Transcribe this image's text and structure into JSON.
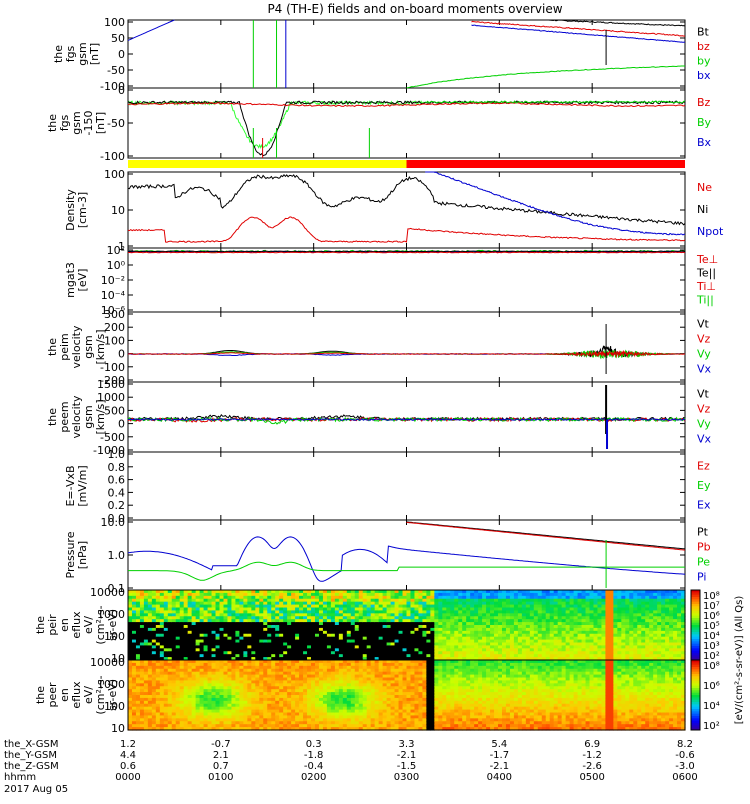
{
  "title": "P4 (TH-E) fields and on-board moments overview",
  "colors": {
    "black": "#000000",
    "red": "#e00000",
    "green": "#00d000",
    "blue": "#0000d0",
    "lightgreen": "#30ff30",
    "yellow": "#ffff00",
    "bar_red": "#ff0000"
  },
  "panels": [
    {
      "id": "fgs",
      "ylabel": [
        "the",
        "fgs",
        "gsm",
        "[nT]"
      ],
      "ticks": [
        "100",
        "50",
        "0",
        "-50",
        "-100"
      ],
      "ylim": [
        -100,
        100
      ],
      "legend": [
        {
          "label": "Bt",
          "color": "#000000"
        },
        {
          "label": "bz",
          "color": "#e00000"
        },
        {
          "label": "by",
          "color": "#00d000"
        },
        {
          "label": "bx",
          "color": "#0000d0"
        }
      ]
    },
    {
      "id": "fgs_hi",
      "ylabel": [
        "the",
        "fgs",
        "gsm",
        "-150",
        "[nT]"
      ],
      "ticks": [
        "0",
        "-50",
        "-100"
      ],
      "ylim": [
        -130,
        30
      ],
      "legend": [
        {
          "label": "Bz",
          "color": "#e00000"
        },
        {
          "label": "By",
          "color": "#00d000"
        },
        {
          "label": "Bx",
          "color": "#0000d0"
        }
      ]
    },
    {
      "id": "density",
      "ylabel": [
        "Density",
        "[cm-3]"
      ],
      "ticks": [
        "100",
        "10",
        "1"
      ],
      "ylim": [
        0.4,
        300
      ],
      "log": true,
      "legend": [
        {
          "label": "Ne",
          "color": "#e00000"
        },
        {
          "label": "Ni",
          "color": "#000000"
        },
        {
          "label": "Npot",
          "color": "#0000d0"
        }
      ]
    },
    {
      "id": "temp",
      "ylabel": [
        "mgat3",
        "[eV]"
      ],
      "ticks": [
        "10²",
        "10⁰",
        "10⁻²",
        "10⁻⁴",
        "10⁻⁶"
      ],
      "ylim": [
        1e-07,
        1000.0
      ],
      "log": true,
      "legend": [
        {
          "label": "Te⊥",
          "color": "#e00000"
        },
        {
          "label": "Te||",
          "color": "#000000"
        },
        {
          "label": "Ti⊥",
          "color": "#e00000"
        },
        {
          "label": "Ti||",
          "color": "#00d000"
        }
      ]
    },
    {
      "id": "peim_vel",
      "ylabel": [
        "the",
        "peim",
        "velocity",
        "gsm",
        "[km/s]"
      ],
      "ticks": [
        "300",
        "200",
        "100",
        "0",
        "-100",
        "-200"
      ],
      "ylim": [
        -200,
        300
      ],
      "legend": [
        {
          "label": "Vt",
          "color": "#000000"
        },
        {
          "label": "Vz",
          "color": "#e00000"
        },
        {
          "label": "Vy",
          "color": "#00d000"
        },
        {
          "label": "Vx",
          "color": "#0000d0"
        }
      ]
    },
    {
      "id": "peem_vel",
      "ylabel": [
        "the",
        "peem",
        "velocity",
        "gsm",
        "[km/s]"
      ],
      "ticks": [
        "1500",
        "1000",
        "500",
        "0",
        "-500",
        "-1000"
      ],
      "ylim": [
        -1300,
        1500
      ],
      "legend": [
        {
          "label": "Vt",
          "color": "#000000"
        },
        {
          "label": "Vz",
          "color": "#e00000"
        },
        {
          "label": "Vy",
          "color": "#00d000"
        },
        {
          "label": "Vx",
          "color": "#0000d0"
        }
      ]
    },
    {
      "id": "efield",
      "ylabel": [
        "E=-VxB",
        "[mV/m]"
      ],
      "ticks": [
        "1.0",
        "0.8",
        "0.6",
        "0.4",
        "0.2",
        "0.0"
      ],
      "ylim": [
        0,
        1
      ],
      "legend": [
        {
          "label": "Ez",
          "color": "#e00000"
        },
        {
          "label": "Ey",
          "color": "#00d000"
        },
        {
          "label": "Ex",
          "color": "#0000d0"
        }
      ]
    },
    {
      "id": "pressure",
      "ylabel": [
        "Pressure",
        "[nPa]"
      ],
      "ticks": [
        "10.0",
        "1.0",
        "0.1"
      ],
      "ylim": [
        0.04,
        30
      ],
      "log": true,
      "legend": [
        {
          "label": "Pt",
          "color": "#000000"
        },
        {
          "label": "Pb",
          "color": "#e00000"
        },
        {
          "label": "Pe",
          "color": "#00d000"
        },
        {
          "label": "Pi",
          "color": "#0000d0"
        }
      ]
    },
    {
      "id": "peir",
      "ylabel": [
        "the",
        "peir",
        "en",
        "eflux",
        "eV/",
        "(cm²-s-",
        "sr-eV)"
      ],
      "ticks": [
        "10000",
        "1000",
        "100",
        "10"
      ]
    },
    {
      "id": "peer",
      "ylabel": [
        "the",
        "peer",
        "en",
        "eflux",
        "eV/",
        "(cm²-s-",
        "sr-eV)"
      ],
      "ticks": [
        "10000",
        "1000",
        "100",
        "10"
      ]
    }
  ],
  "colorbar": {
    "ticks": [
      "10⁸",
      "10⁷",
      "10⁶",
      "10⁵",
      "10⁴",
      "10³",
      "10²"
    ],
    "label": "[eV/(cm²-s-sr-eV)] (All Qs)",
    "ticks2": [
      "10⁸",
      "10⁶",
      "10⁴",
      "10²"
    ]
  },
  "xaxis": {
    "rows": [
      {
        "label": "the_X-GSM",
        "values": [
          "1.2",
          "-0.7",
          "0.3",
          "3.3",
          "5.4",
          "6.9",
          "8.2"
        ]
      },
      {
        "label": "the_Y-GSM",
        "values": [
          "4.4",
          "2.1",
          "-1.8",
          "-2.1",
          "-1.7",
          "-1.2",
          "-0.6"
        ]
      },
      {
        "label": "the_Z-GSM",
        "values": [
          "0.6",
          "0.7",
          "-0.4",
          "-1.5",
          "-2.1",
          "-2.6",
          "-3.0"
        ]
      },
      {
        "label": "hhmm",
        "values": [
          "0000",
          "0100",
          "0200",
          "0300",
          "0400",
          "0500",
          "0600"
        ]
      }
    ],
    "date": "2017 Aug 05"
  },
  "chart_data": {
    "type": "line",
    "title": "P4 (TH-E) fields and on-board moments overview",
    "x_unit": "hhmm",
    "categories": [
      "0000",
      "0100",
      "0200",
      "0300",
      "0400",
      "0500",
      "0600"
    ],
    "series": [
      {
        "name": "Bt",
        "panel": "fgs",
        "x": [
          0,
          1,
          2,
          3,
          4,
          5,
          6
        ],
        "values": [
          null,
          null,
          null,
          null,
          110,
          85,
          70
        ]
      },
      {
        "name": "bz",
        "panel": "fgs",
        "x": [
          0,
          1,
          2,
          3,
          4,
          5,
          6
        ],
        "values": [
          null,
          null,
          null,
          null,
          80,
          60,
          50
        ]
      },
      {
        "name": "by",
        "panel": "fgs",
        "x": [
          0,
          1,
          2,
          3,
          4,
          5,
          6
        ],
        "values": [
          null,
          null,
          null,
          -100,
          -40,
          -10,
          0
        ]
      },
      {
        "name": "bx",
        "panel": "fgs",
        "x": [
          0,
          0.5,
          1,
          2,
          3,
          4,
          5,
          6
        ],
        "values": [
          40,
          100,
          null,
          null,
          null,
          60,
          45,
          35
        ]
      },
      {
        "name": "Ni",
        "panel": "density",
        "x": [
          0,
          0.5,
          1.5,
          2,
          2.5,
          3,
          3.3,
          4,
          5,
          6
        ],
        "values": [
          90,
          100,
          200,
          200,
          40,
          90,
          200,
          10,
          5,
          2
        ]
      },
      {
        "name": "Ne",
        "panel": "density",
        "x": [
          0,
          0.5,
          1.3,
          1.6,
          2,
          2.5,
          3,
          3.3,
          4,
          5,
          6
        ],
        "values": [
          1.2,
          0.9,
          5,
          2,
          5,
          0.8,
          1.5,
          2,
          1.5,
          1,
          0.8
        ]
      },
      {
        "name": "Pi",
        "panel": "pressure",
        "x": [
          0,
          1,
          1.3,
          1.5,
          1.7,
          2,
          2.5,
          3,
          3.5,
          4,
          5,
          6
        ],
        "values": [
          1.5,
          0.3,
          6,
          2,
          6,
          0.4,
          0.1,
          2,
          1.5,
          0.5,
          0.2,
          0.15
        ]
      },
      {
        "name": "Pt",
        "panel": "pressure",
        "x": [
          3,
          3.5,
          4,
          5,
          6
        ],
        "values": [
          20,
          12,
          8,
          3,
          2
        ]
      },
      {
        "name": "Pe",
        "panel": "pressure",
        "x": [
          0,
          1.3,
          1.6,
          2,
          3,
          4,
          5,
          6
        ],
        "values": [
          0.3,
          0.5,
          0.2,
          0.5,
          0.2,
          0.15,
          0.1,
          0.1
        ]
      }
    ]
  }
}
